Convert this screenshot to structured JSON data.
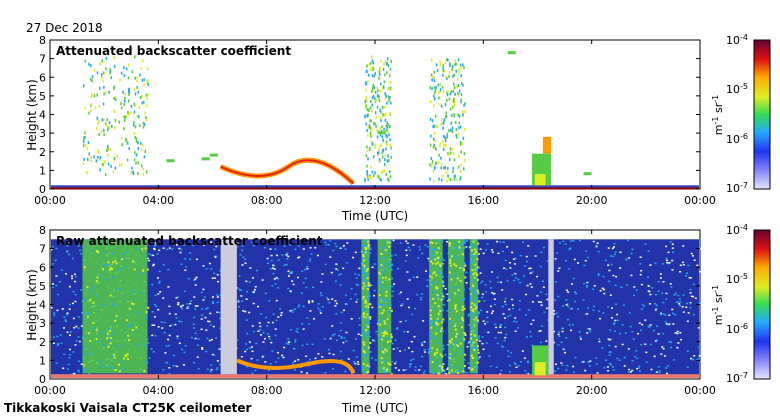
{
  "date": "27 Dec 2018",
  "footer": "Tikkakoski Vaisala CT25K ceilometer",
  "colors": {
    "background_clear": "#2233aa",
    "noise_blue": "#3355dd",
    "noise_cyan": "#22aaee",
    "green": "#55cc44",
    "yellow": "#ddee22",
    "orange": "#ff9900",
    "red": "#dd2211",
    "dark_red": "#880000",
    "missing_gray": "#ccccdd"
  },
  "chart_data": [
    {
      "type": "heatmap",
      "title": "Attenuated backscatter coefficient",
      "xlabel": "Time (UTC)",
      "ylabel": "Height (km)",
      "xlim_hours": [
        0,
        24
      ],
      "x_ticks": [
        "00:00",
        "04:00",
        "08:00",
        "12:00",
        "16:00",
        "20:00",
        "00:00"
      ],
      "ylim_km": [
        0,
        8
      ],
      "y_ticks": [
        "0",
        "1",
        "2",
        "3",
        "4",
        "5",
        "6",
        "7",
        "8"
      ],
      "colorbar": {
        "label": "m-1 sr-1",
        "scale": "log",
        "range": [
          "1e-7",
          "1e-4"
        ],
        "tick_labels": [
          "10-4",
          "10-5",
          "10-6",
          "10-7"
        ]
      },
      "features": [
        {
          "name": "scattered echoes",
          "start_h": 1.2,
          "end_h": 3.6,
          "bottom_km": 0.8,
          "top_km": 7.2
        },
        {
          "name": "cloud base layer",
          "start_h": 6.3,
          "end_h": 11.2,
          "bottom_km": 0.1,
          "top_km": 1.5
        },
        {
          "name": "scattered echoes",
          "start_h": 11.6,
          "end_h": 12.6,
          "bottom_km": 0.5,
          "top_km": 7.2
        },
        {
          "name": "scattered echoes",
          "start_h": 14.0,
          "end_h": 15.3,
          "bottom_km": 0.5,
          "top_km": 7.1
        },
        {
          "name": "low cloud",
          "start_h": 17.7,
          "end_h": 18.6,
          "bottom_km": 0.1,
          "top_km": 2.8
        },
        {
          "name": "boundary layer",
          "start_h": 0,
          "end_h": 24,
          "bottom_km": 0,
          "top_km": 0.2
        }
      ]
    },
    {
      "type": "heatmap",
      "title": "Raw attenuated backscatter coefficient",
      "xlabel": "Time (UTC)",
      "ylabel": "Height (km)",
      "xlim_hours": [
        0,
        24
      ],
      "x_ticks": [
        "00:00",
        "04:00",
        "08:00",
        "12:00",
        "16:00",
        "20:00",
        "00:00"
      ],
      "ylim_km": [
        0,
        8
      ],
      "y_ticks": [
        "0",
        "1",
        "2",
        "3",
        "4",
        "5",
        "6",
        "7",
        "8"
      ],
      "colorbar": {
        "label": "m-1 sr-1",
        "scale": "log",
        "range": [
          "1e-7",
          "1e-4"
        ],
        "tick_labels": [
          "10-4",
          "10-5",
          "10-6",
          "10-7"
        ]
      },
      "missing_data_hours": [
        [
          6.3,
          6.9
        ],
        [
          18.4,
          18.6
        ]
      ],
      "noise_top_km": 7.5,
      "high_signal_bands_hours": [
        [
          1.2,
          3.6
        ],
        [
          11.5,
          11.8
        ],
        [
          12.1,
          12.6
        ],
        [
          14.0,
          14.5
        ],
        [
          14.7,
          15.3
        ],
        [
          15.5,
          15.8
        ]
      ]
    }
  ]
}
